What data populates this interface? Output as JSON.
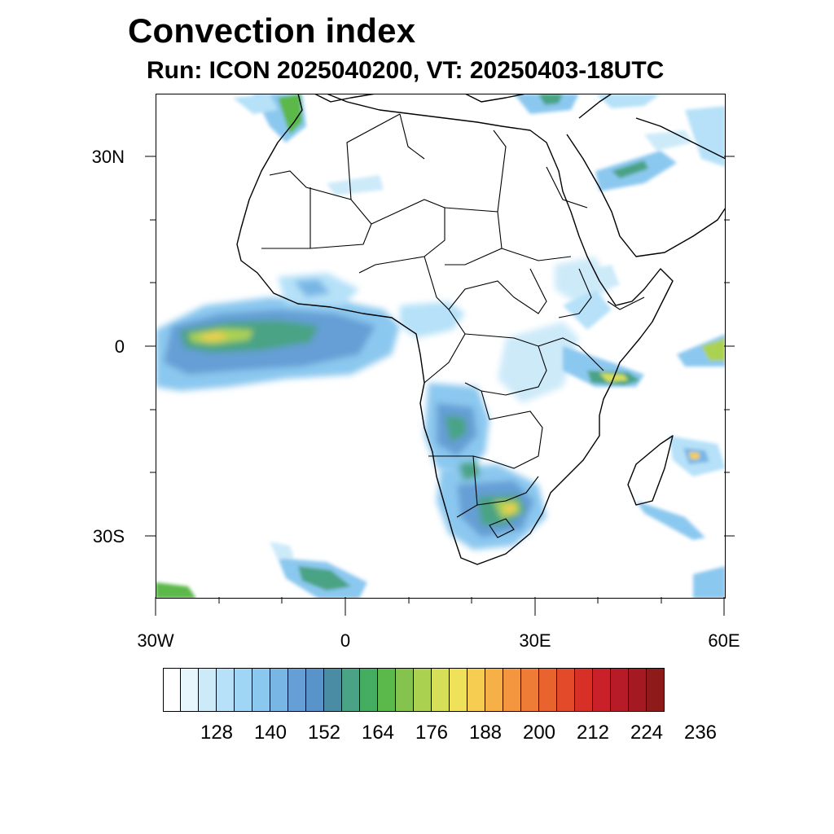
{
  "title": "Convection index",
  "subtitle": "Run: ICON 2025040200,  VT: 20250403-18UTC",
  "map": {
    "projection": "equirectangular",
    "lon_range": [
      -30,
      60
    ],
    "lat_range": [
      -40,
      40
    ],
    "background": "#ffffff",
    "coastline_color": "#000000"
  },
  "axes": {
    "lat_labels": [
      "30N",
      "0",
      "30S"
    ],
    "lon_labels": [
      "30W",
      "0",
      "30E",
      "60E"
    ]
  },
  "colorbar": {
    "colors": [
      "#ffffff",
      "#e7f5fd",
      "#cdeaf9",
      "#b6e1f8",
      "#9fd6f5",
      "#8bc8ef",
      "#78b6e6",
      "#659fd5",
      "#5893c9",
      "#4a8ca4",
      "#4aa384",
      "#45ad62",
      "#5bb84a",
      "#84c34d",
      "#abd151",
      "#d6df58",
      "#f0e15a",
      "#f6cd50",
      "#f5b148",
      "#f49640",
      "#ef7c36",
      "#e9632e",
      "#e24a2a",
      "#d83027",
      "#c9202a",
      "#b71b27",
      "#a51a22",
      "#8e1a1a"
    ],
    "labels": [
      "128",
      "140",
      "152",
      "164",
      "176",
      "188",
      "200",
      "212",
      "224",
      "236"
    ]
  }
}
